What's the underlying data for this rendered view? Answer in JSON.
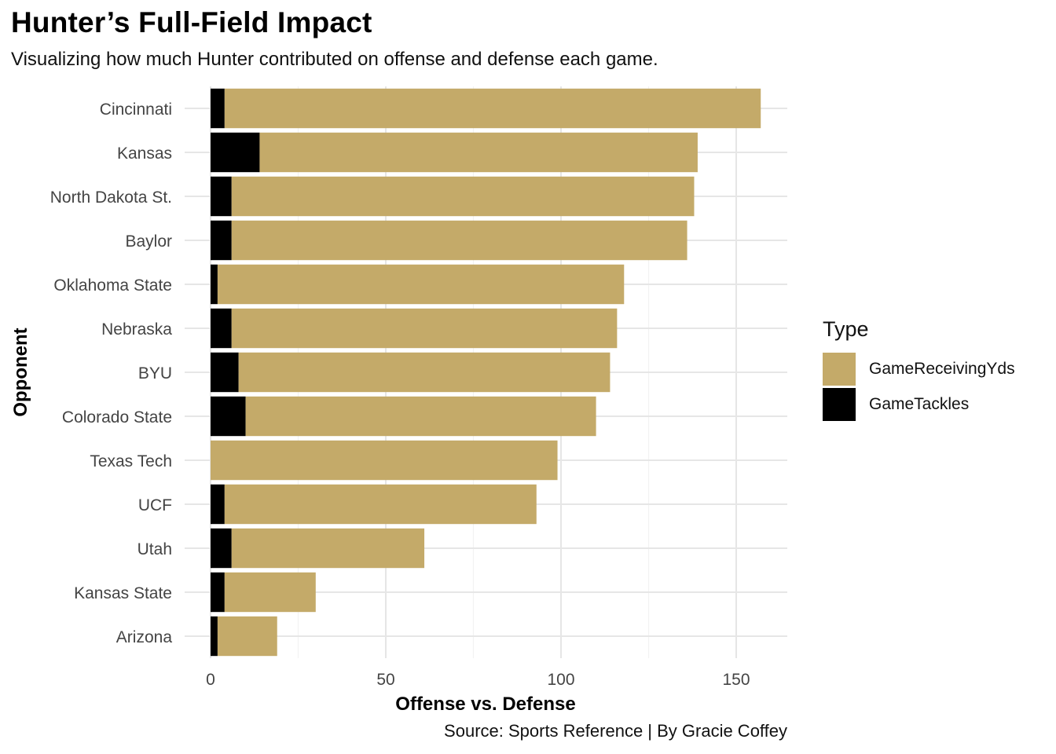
{
  "title": "Hunter’s Full-Field Impact",
  "subtitle": "Visualizing how much Hunter contributed on offense and defense each game.",
  "caption": "Source: Sports Reference | By Gracie Coffey",
  "colors": {
    "receiving": "#c4aa69",
    "tackles": "#000000",
    "grid": "#e6e6e6"
  },
  "legend": {
    "title": "Type",
    "items": [
      {
        "label": "GameReceivingYds",
        "color": "#c4aa69"
      },
      {
        "label": "GameTackles",
        "color": "#000000"
      }
    ]
  },
  "chart_data": {
    "type": "bar",
    "orientation": "horizontal",
    "stacked": true,
    "xlabel": "Offense vs. Defense",
    "ylabel": "Opponent",
    "xlim": [
      0,
      165
    ],
    "xticks": [
      0,
      50,
      100,
      150
    ],
    "grid": true,
    "legend_position": "right",
    "categories": [
      "Cincinnati",
      "Kansas",
      "North Dakota St.",
      "Baylor",
      "Oklahoma State",
      "Nebraska",
      "BYU",
      "Colorado State",
      "Texas Tech",
      "UCF",
      "Utah",
      "Kansas State",
      "Arizona"
    ],
    "series": [
      {
        "name": "GameTackles",
        "values": [
          4,
          14,
          6,
          6,
          2,
          6,
          8,
          10,
          0,
          4,
          6,
          4,
          2
        ]
      },
      {
        "name": "GameReceivingYds",
        "values": [
          153,
          125,
          132,
          130,
          116,
          110,
          106,
          100,
          99,
          89,
          55,
          26,
          17
        ]
      }
    ]
  }
}
